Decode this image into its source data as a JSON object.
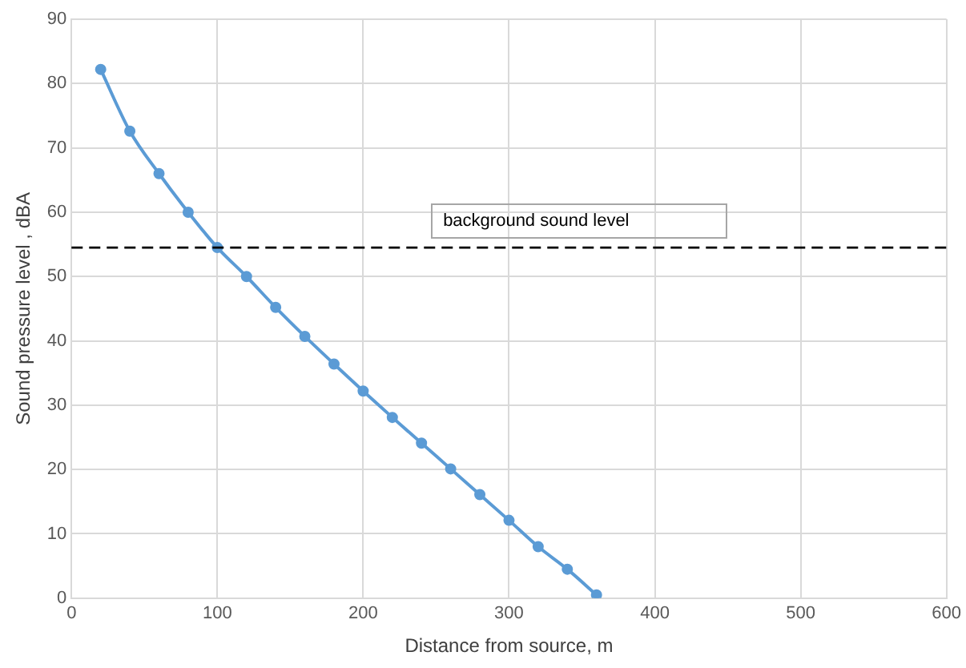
{
  "chart_data": {
    "type": "line",
    "xlabel": "Distance from source, m",
    "ylabel": "Sound pressure level , dBA",
    "x": [
      20,
      40,
      60,
      80,
      100,
      120,
      140,
      160,
      180,
      200,
      220,
      240,
      260,
      280,
      300,
      320,
      340,
      360
    ],
    "series": [
      {
        "color": "#5b9bd5",
        "values": [
          82.2,
          72.6,
          66,
          60,
          54.5,
          50,
          45.2,
          40.7,
          36.4,
          32.2,
          28.1,
          24.1,
          20.1,
          16.1,
          12.1,
          8,
          4.5,
          0.5
        ]
      }
    ],
    "xlim": [
      0,
      600
    ],
    "xticks": [
      0,
      100,
      200,
      300,
      400,
      500,
      600
    ],
    "ylim": [
      0,
      90
    ],
    "yticks": [
      0,
      10,
      20,
      30,
      40,
      50,
      60,
      70,
      80,
      90
    ],
    "grid": true,
    "legend": false,
    "marker": "circle",
    "line_style": "solid",
    "ref_lines": [
      {
        "axis": "y",
        "value": 54.5,
        "label": "background sound level",
        "color": "#000000",
        "line_style": "dashed"
      }
    ]
  }
}
